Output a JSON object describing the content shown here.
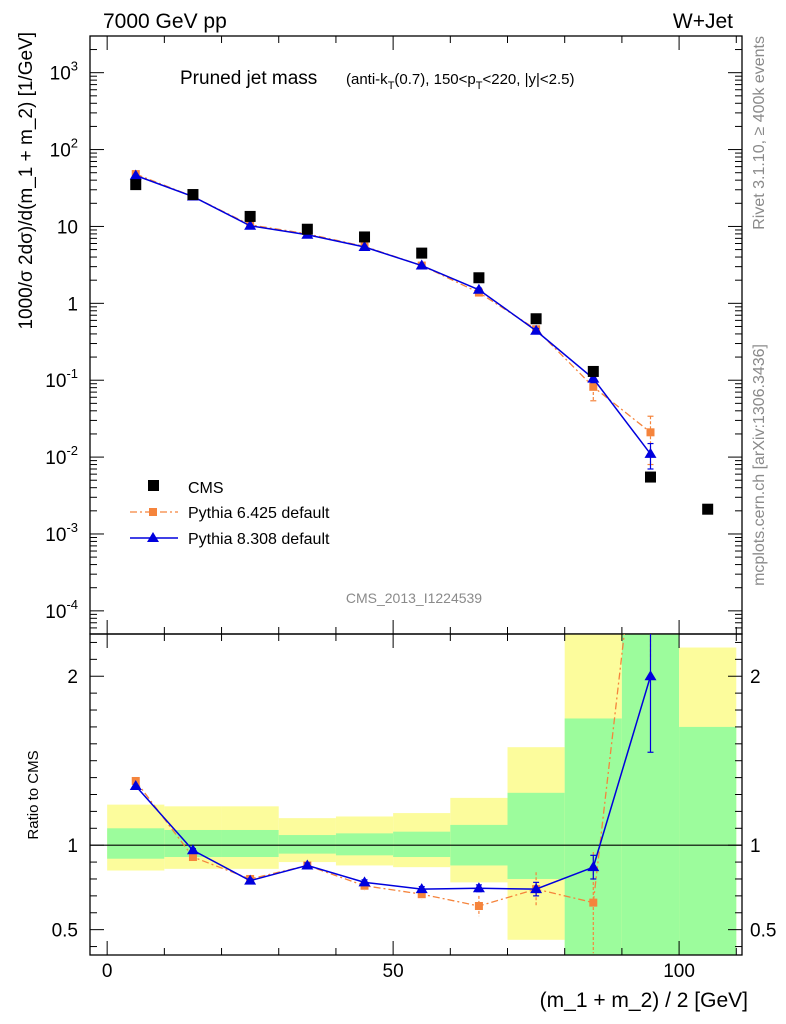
{
  "chart_data": {
    "type": "scatter",
    "header_left": "7000 GeV pp",
    "header_right": "W+Jet",
    "title": "Pruned jet mass",
    "title_detail_parts": [
      "(anti-k",
      "T",
      "(0.7), 150<p",
      "T",
      "<220, |y|<2.5)"
    ],
    "side_label_top": "Rivet 3.1.10, ≥ 400k events",
    "side_label_bottom": "mcplots.cern.ch [arXiv:1306.3436]",
    "analysis_id": "CMS_2013_I1224539",
    "main_plot": {
      "ylabel": "1000/σ 2dσ)/d(m_1 + m_2) [1/GeV]",
      "yscale": "log",
      "ylim": [
        5e-05,
        3000
      ],
      "ytick_labels": [
        {
          "value": 1000,
          "base": "10",
          "exp": "3"
        },
        {
          "value": 100,
          "base": "10",
          "exp": "2"
        },
        {
          "value": 10,
          "base": "10",
          "exp": ""
        },
        {
          "value": 1,
          "base": "1",
          "exp": ""
        },
        {
          "value": 0.1,
          "base": "10",
          "exp": "-1"
        },
        {
          "value": 0.01,
          "base": "10",
          "exp": "-2"
        },
        {
          "value": 0.001,
          "base": "10",
          "exp": "-3"
        },
        {
          "value": 0.0001,
          "base": "10",
          "exp": "-4"
        }
      ]
    },
    "ratio_plot": {
      "ylabel": "Ratio to CMS",
      "ylim": [
        0.35,
        2.25
      ],
      "ytick_labels": [
        "0.5",
        "1",
        "2"
      ],
      "yticks": [
        0.5,
        1,
        2
      ]
    },
    "x": {
      "label": "(m_1 + m_2) / 2 [GeV]",
      "lim": [
        -3,
        111
      ],
      "ticks": [
        0,
        50,
        100
      ],
      "tick_labels": [
        "0",
        "50",
        "100"
      ]
    },
    "legend": {
      "position": "bottom-left",
      "entries": [
        "CMS",
        "Pythia 6.425 default",
        "Pythia 8.308 default"
      ]
    },
    "colors": {
      "cms": "#000000",
      "pythia6": "#f5843c",
      "pythia8": "#0000dd",
      "band_inner": "#9cfc9c",
      "band_outer": "#fcfc9c"
    },
    "series": [
      {
        "name": "CMS",
        "x": [
          5,
          15,
          25,
          35,
          45,
          55,
          65,
          75,
          85,
          95,
          105
        ],
        "y": [
          35,
          26,
          13.5,
          9.2,
          7.3,
          4.5,
          2.15,
          0.63,
          0.13,
          0.0055,
          0.0021
        ]
      },
      {
        "name": "Pythia 6.425 default",
        "x": [
          5,
          15,
          25,
          35,
          45,
          55,
          65,
          75,
          85,
          95
        ],
        "y": [
          48,
          24.5,
          10.5,
          8.0,
          5.5,
          3.1,
          1.38,
          0.46,
          0.082,
          0.021
        ],
        "yerr": [
          0,
          0,
          0,
          0,
          0,
          0,
          0.1,
          0.04,
          0.028,
          0.013
        ]
      },
      {
        "name": "Pythia 8.308 default",
        "x": [
          5,
          15,
          25,
          35,
          45,
          55,
          65,
          75,
          85,
          95
        ],
        "y": [
          46,
          24.5,
          10.2,
          7.8,
          5.4,
          3.1,
          1.5,
          0.44,
          0.105,
          0.011
        ],
        "yerr": [
          0,
          0,
          0,
          0,
          0,
          0,
          0.08,
          0.03,
          0.012,
          0.004
        ]
      }
    ],
    "ratio_series": [
      {
        "name": "Pythia 6.425 default",
        "x": [
          5,
          15,
          25,
          35,
          45,
          55,
          65,
          75,
          85,
          95
        ],
        "y": [
          1.38,
          0.93,
          0.8,
          0.88,
          0.76,
          0.71,
          0.64,
          0.74,
          0.66,
          3.6
        ],
        "yerr": [
          0,
          0.015,
          0.02,
          0.02,
          0.03,
          0.03,
          0.06,
          0.1,
          0.3,
          1.5
        ]
      },
      {
        "name": "Pythia 8.308 default",
        "x": [
          5,
          15,
          25,
          35,
          45,
          55,
          65,
          75,
          85,
          95
        ],
        "y": [
          1.35,
          0.97,
          0.79,
          0.88,
          0.78,
          0.74,
          0.745,
          0.74,
          0.87,
          2.0
        ],
        "yerr": [
          0,
          0.01,
          0.01,
          0.015,
          0.015,
          0.015,
          0.02,
          0.04,
          0.07,
          0.45
        ]
      }
    ],
    "ratio_bands": [
      {
        "xlow": 0,
        "xhigh": 10,
        "inner": [
          0.92,
          1.1
        ],
        "outer": [
          0.85,
          1.24
        ]
      },
      {
        "xlow": 10,
        "xhigh": 20,
        "inner": [
          0.93,
          1.09
        ],
        "outer": [
          0.86,
          1.23
        ]
      },
      {
        "xlow": 20,
        "xhigh": 30,
        "inner": [
          0.93,
          1.09
        ],
        "outer": [
          0.86,
          1.23
        ]
      },
      {
        "xlow": 30,
        "xhigh": 40,
        "inner": [
          0.95,
          1.06
        ],
        "outer": [
          0.9,
          1.16
        ]
      },
      {
        "xlow": 40,
        "xhigh": 50,
        "inner": [
          0.94,
          1.07
        ],
        "outer": [
          0.88,
          1.17
        ]
      },
      {
        "xlow": 50,
        "xhigh": 60,
        "inner": [
          0.93,
          1.08
        ],
        "outer": [
          0.87,
          1.19
        ]
      },
      {
        "xlow": 60,
        "xhigh": 70,
        "inner": [
          0.88,
          1.12
        ],
        "outer": [
          0.78,
          1.28
        ]
      },
      {
        "xlow": 70,
        "xhigh": 80,
        "inner": [
          0.8,
          1.31
        ],
        "outer": [
          0.44,
          1.58
        ]
      },
      {
        "xlow": 80,
        "xhigh": 90,
        "inner": [
          0.35,
          1.75
        ],
        "outer": [
          0.35,
          2.25
        ]
      },
      {
        "xlow": 90,
        "xhigh": 100,
        "inner": [
          0.35,
          2.25
        ],
        "outer": [
          0.35,
          2.25
        ]
      },
      {
        "xlow": 100,
        "xhigh": 110,
        "inner": [
          0.35,
          1.7
        ],
        "outer": [
          0.35,
          2.17
        ]
      }
    ]
  }
}
